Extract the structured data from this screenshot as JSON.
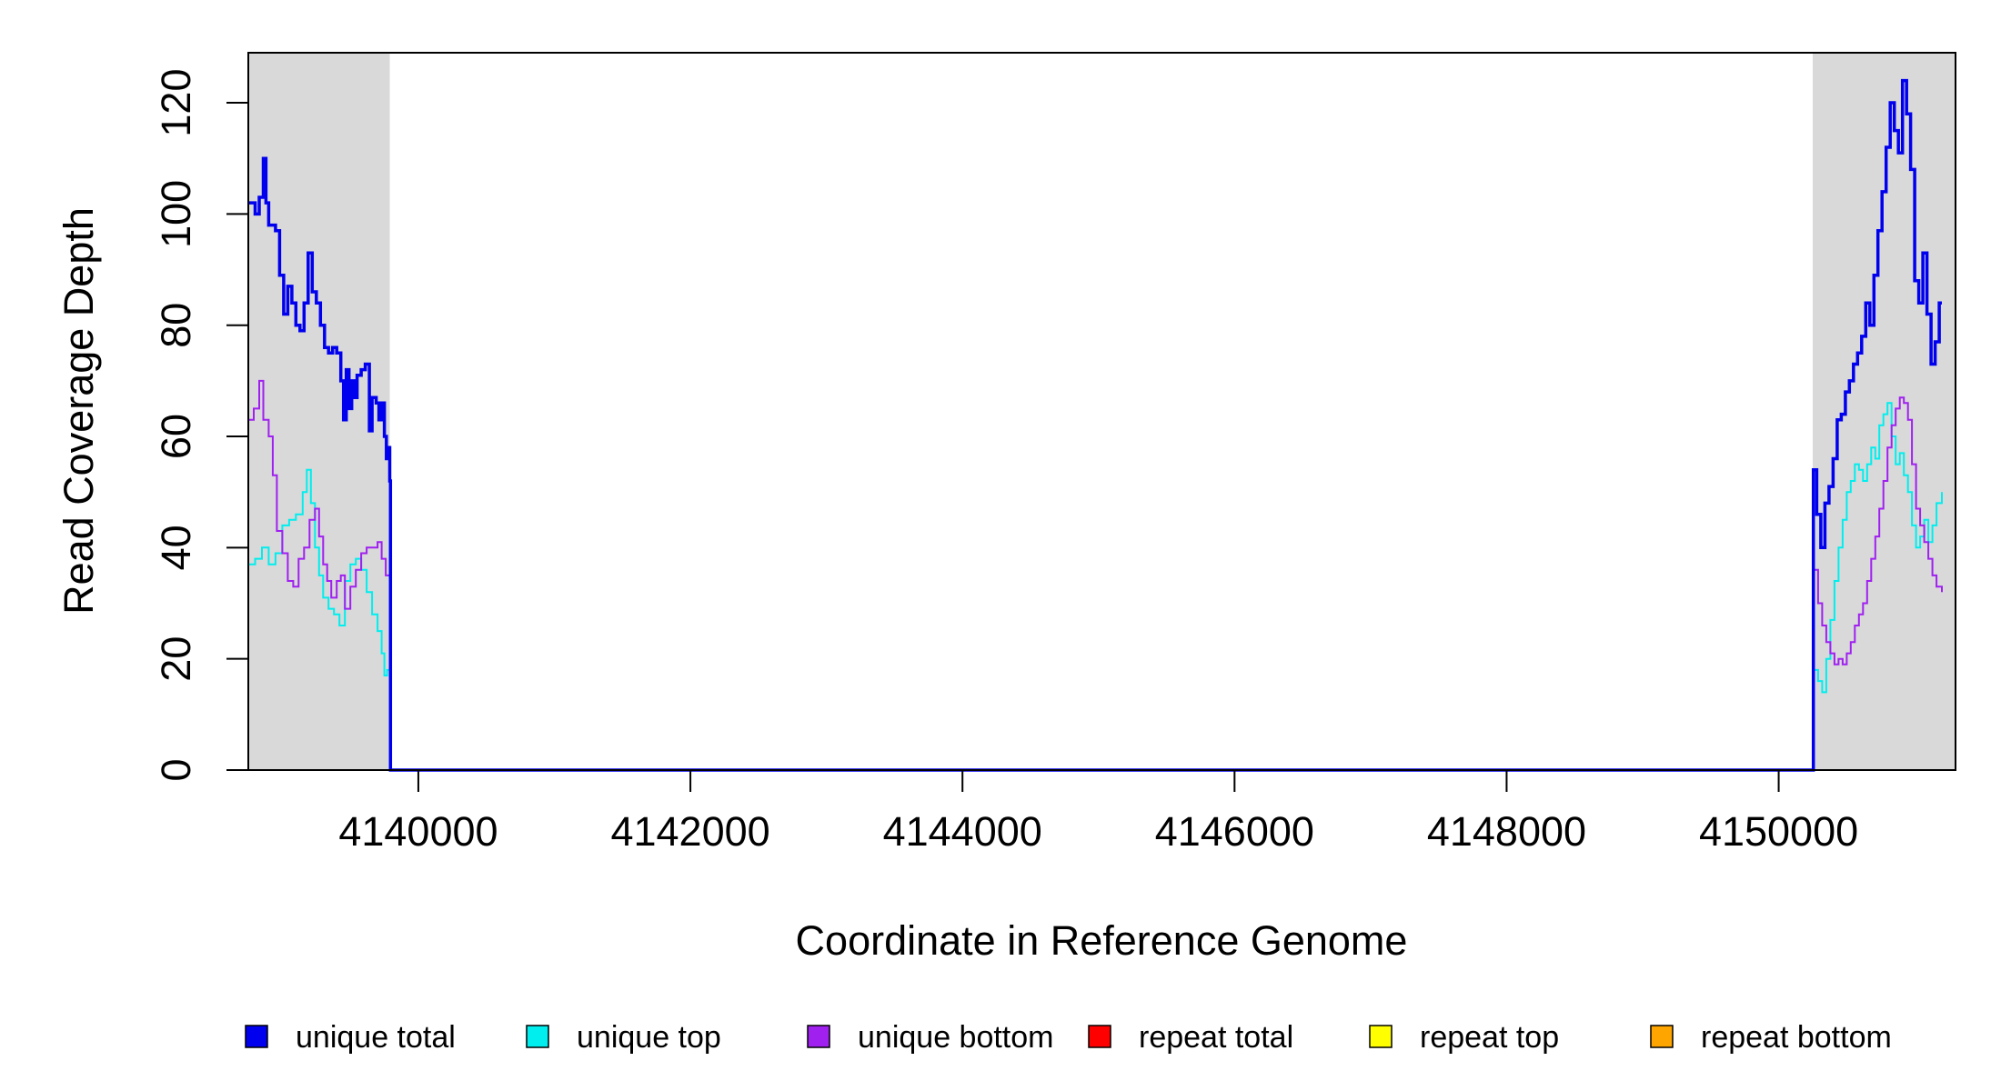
{
  "chart_data": {
    "type": "line",
    "xlabel": "Coordinate in Reference Genome",
    "ylabel": "Read Coverage Depth",
    "xlim": [
      4138750,
      4151300
    ],
    "ylim": [
      0,
      129
    ],
    "x_ticks": [
      4140000,
      4142000,
      4144000,
      4146000,
      4148000,
      4150000
    ],
    "x_tick_labels": [
      "4140000",
      "4142000",
      "4144000",
      "4146000",
      "4148000",
      "4150000"
    ],
    "y_ticks": [
      0,
      20,
      40,
      60,
      80,
      100,
      120
    ],
    "y_tick_labels": [
      "0",
      "20",
      "40",
      "60",
      "80",
      "100",
      "120"
    ],
    "grid": false,
    "legend_position": "bottom",
    "shaded_regions": [
      {
        "x": [
          4138750,
          4139790
        ],
        "color": "#d9d9d9"
      },
      {
        "x": [
          4150250,
          4151300
        ],
        "color": "#d9d9d9"
      }
    ],
    "series": [
      {
        "name": "unique total",
        "color": "#0000ee",
        "points": [
          [
            4138750,
            102
          ],
          [
            4138800,
            100
          ],
          [
            4138830,
            103
          ],
          [
            4138860,
            110
          ],
          [
            4138880,
            102
          ],
          [
            4138900,
            98
          ],
          [
            4138950,
            97
          ],
          [
            4138980,
            89
          ],
          [
            4139010,
            82
          ],
          [
            4139040,
            87
          ],
          [
            4139070,
            84
          ],
          [
            4139100,
            80
          ],
          [
            4139130,
            79
          ],
          [
            4139160,
            84
          ],
          [
            4139190,
            93
          ],
          [
            4139220,
            86
          ],
          [
            4139250,
            84
          ],
          [
            4139280,
            80
          ],
          [
            4139310,
            76
          ],
          [
            4139340,
            75
          ],
          [
            4139370,
            76
          ],
          [
            4139400,
            75
          ],
          [
            4139430,
            70
          ],
          [
            4139450,
            63
          ],
          [
            4139470,
            72
          ],
          [
            4139490,
            65
          ],
          [
            4139510,
            70
          ],
          [
            4139530,
            67
          ],
          [
            4139550,
            71
          ],
          [
            4139580,
            72
          ],
          [
            4139610,
            73
          ],
          [
            4139640,
            61
          ],
          [
            4139660,
            67
          ],
          [
            4139690,
            66
          ],
          [
            4139710,
            63
          ],
          [
            4139730,
            66
          ],
          [
            4139750,
            60
          ],
          [
            4139765,
            56
          ],
          [
            4139780,
            58
          ],
          [
            4139790,
            52
          ],
          [
            4139795,
            0
          ],
          [
            4150250,
            0
          ],
          [
            4150255,
            54
          ],
          [
            4150280,
            46
          ],
          [
            4150310,
            40
          ],
          [
            4150340,
            48
          ],
          [
            4150370,
            51
          ],
          [
            4150400,
            56
          ],
          [
            4150430,
            63
          ],
          [
            4150460,
            64
          ],
          [
            4150490,
            68
          ],
          [
            4150520,
            70
          ],
          [
            4150550,
            73
          ],
          [
            4150580,
            75
          ],
          [
            4150610,
            78
          ],
          [
            4150640,
            84
          ],
          [
            4150670,
            80
          ],
          [
            4150700,
            89
          ],
          [
            4150730,
            97
          ],
          [
            4150760,
            104
          ],
          [
            4150790,
            112
          ],
          [
            4150820,
            120
          ],
          [
            4150850,
            115
          ],
          [
            4150880,
            111
          ],
          [
            4150910,
            124
          ],
          [
            4150940,
            118
          ],
          [
            4150970,
            108
          ],
          [
            4151000,
            88
          ],
          [
            4151030,
            84
          ],
          [
            4151060,
            93
          ],
          [
            4151090,
            82
          ],
          [
            4151120,
            73
          ],
          [
            4151150,
            77
          ],
          [
            4151180,
            84
          ],
          [
            4151200,
            84
          ]
        ]
      },
      {
        "name": "unique top",
        "color": "#00eeee",
        "points": [
          [
            4138750,
            37
          ],
          [
            4138800,
            38
          ],
          [
            4138850,
            40
          ],
          [
            4138900,
            37
          ],
          [
            4138950,
            39
          ],
          [
            4139000,
            44
          ],
          [
            4139050,
            45
          ],
          [
            4139100,
            46
          ],
          [
            4139150,
            50
          ],
          [
            4139180,
            54
          ],
          [
            4139210,
            48
          ],
          [
            4139240,
            40
          ],
          [
            4139270,
            35
          ],
          [
            4139300,
            31
          ],
          [
            4139340,
            29
          ],
          [
            4139380,
            28
          ],
          [
            4139420,
            26
          ],
          [
            4139460,
            34
          ],
          [
            4139500,
            37
          ],
          [
            4139540,
            38
          ],
          [
            4139580,
            36
          ],
          [
            4139620,
            32
          ],
          [
            4139660,
            28
          ],
          [
            4139700,
            25
          ],
          [
            4139730,
            21
          ],
          [
            4139750,
            17
          ],
          [
            4139770,
            18
          ],
          [
            4139790,
            18
          ],
          [
            4139795,
            0
          ],
          [
            4150250,
            0
          ],
          [
            4150255,
            18
          ],
          [
            4150290,
            16
          ],
          [
            4150320,
            14
          ],
          [
            4150350,
            20
          ],
          [
            4150380,
            27
          ],
          [
            4150410,
            34
          ],
          [
            4150440,
            40
          ],
          [
            4150470,
            45
          ],
          [
            4150500,
            50
          ],
          [
            4150530,
            52
          ],
          [
            4150560,
            55
          ],
          [
            4150590,
            54
          ],
          [
            4150620,
            52
          ],
          [
            4150650,
            55
          ],
          [
            4150680,
            58
          ],
          [
            4150710,
            56
          ],
          [
            4150740,
            62
          ],
          [
            4150770,
            64
          ],
          [
            4150800,
            66
          ],
          [
            4150830,
            60
          ],
          [
            4150860,
            55
          ],
          [
            4150890,
            57
          ],
          [
            4150920,
            53
          ],
          [
            4150950,
            50
          ],
          [
            4150980,
            44
          ],
          [
            4151010,
            40
          ],
          [
            4151040,
            42
          ],
          [
            4151070,
            45
          ],
          [
            4151100,
            41
          ],
          [
            4151130,
            44
          ],
          [
            4151160,
            48
          ],
          [
            4151200,
            50
          ]
        ]
      },
      {
        "name": "unique bottom",
        "color": "#a020f0",
        "points": [
          [
            4138750,
            63
          ],
          [
            4138790,
            65
          ],
          [
            4138830,
            70
          ],
          [
            4138860,
            63
          ],
          [
            4138900,
            60
          ],
          [
            4138930,
            53
          ],
          [
            4138960,
            43
          ],
          [
            4139000,
            39
          ],
          [
            4139040,
            34
          ],
          [
            4139080,
            33
          ],
          [
            4139120,
            38
          ],
          [
            4139160,
            40
          ],
          [
            4139200,
            45
          ],
          [
            4139240,
            47
          ],
          [
            4139270,
            42
          ],
          [
            4139300,
            37
          ],
          [
            4139330,
            34
          ],
          [
            4139360,
            31
          ],
          [
            4139400,
            34
          ],
          [
            4139430,
            35
          ],
          [
            4139460,
            29
          ],
          [
            4139500,
            33
          ],
          [
            4139540,
            36
          ],
          [
            4139580,
            39
          ],
          [
            4139620,
            40
          ],
          [
            4139660,
            40
          ],
          [
            4139700,
            41
          ],
          [
            4139730,
            38
          ],
          [
            4139760,
            35
          ],
          [
            4139790,
            35
          ],
          [
            4139795,
            0
          ],
          [
            4150250,
            0
          ],
          [
            4150255,
            36
          ],
          [
            4150290,
            30
          ],
          [
            4150320,
            26
          ],
          [
            4150350,
            23
          ],
          [
            4150380,
            21
          ],
          [
            4150410,
            19
          ],
          [
            4150440,
            20
          ],
          [
            4150470,
            19
          ],
          [
            4150500,
            21
          ],
          [
            4150530,
            23
          ],
          [
            4150560,
            26
          ],
          [
            4150590,
            28
          ],
          [
            4150620,
            30
          ],
          [
            4150650,
            34
          ],
          [
            4150680,
            38
          ],
          [
            4150710,
            42
          ],
          [
            4150740,
            47
          ],
          [
            4150770,
            52
          ],
          [
            4150800,
            58
          ],
          [
            4150830,
            62
          ],
          [
            4150860,
            65
          ],
          [
            4150890,
            67
          ],
          [
            4150920,
            66
          ],
          [
            4150950,
            63
          ],
          [
            4150980,
            55
          ],
          [
            4151010,
            47
          ],
          [
            4151040,
            44
          ],
          [
            4151070,
            41
          ],
          [
            4151100,
            38
          ],
          [
            4151130,
            35
          ],
          [
            4151160,
            33
          ],
          [
            4151200,
            32
          ]
        ]
      },
      {
        "name": "repeat total",
        "color": "#ff0000",
        "points": [
          [
            4138750,
            0
          ],
          [
            4151200,
            0
          ]
        ]
      },
      {
        "name": "repeat top",
        "color": "#ffff00",
        "points": [
          [
            4138750,
            0
          ],
          [
            4151200,
            0
          ]
        ]
      },
      {
        "name": "repeat bottom",
        "color": "#ffa500",
        "points": [
          [
            4138750,
            0
          ],
          [
            4151200,
            0
          ]
        ]
      }
    ]
  }
}
